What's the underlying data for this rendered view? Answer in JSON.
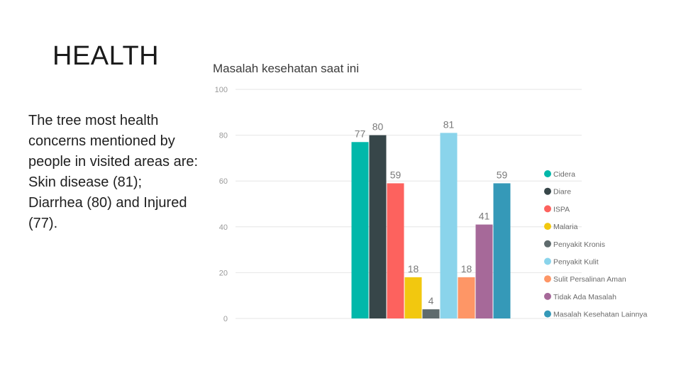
{
  "slide": {
    "title": "HEALTH",
    "body": "The tree most health concerns mentioned by people in visited areas are: Skin disease (81); Diarrhea (80) and Injured (77)."
  },
  "chart_data": {
    "type": "bar",
    "title": "Masalah kesehatan saat ini",
    "ylim": [
      0,
      100
    ],
    "yticks": [
      0,
      20,
      40,
      60,
      80,
      100
    ],
    "grid": true,
    "legend_position": "right",
    "series": [
      {
        "name": "Cidera",
        "value": 77,
        "color": "#01B8AA"
      },
      {
        "name": "Diare",
        "value": 80,
        "color": "#374649"
      },
      {
        "name": "ISPA",
        "value": 59,
        "color": "#FD625E"
      },
      {
        "name": "Malaria",
        "value": 18,
        "color": "#F2C80F"
      },
      {
        "name": "Penyakit Kronis",
        "value": 4,
        "color": "#5F6B6D"
      },
      {
        "name": "Penyakit Kulit",
        "value": 81,
        "color": "#8AD4EB"
      },
      {
        "name": "Sulit Persalinan Aman",
        "value": 18,
        "color": "#FE9666"
      },
      {
        "name": "Tidak Ada Masalah",
        "value": 41,
        "color": "#A66999"
      },
      {
        "name": "Masalah Kesehatan Lainnya",
        "value": 59,
        "color": "#3599B8"
      }
    ]
  }
}
